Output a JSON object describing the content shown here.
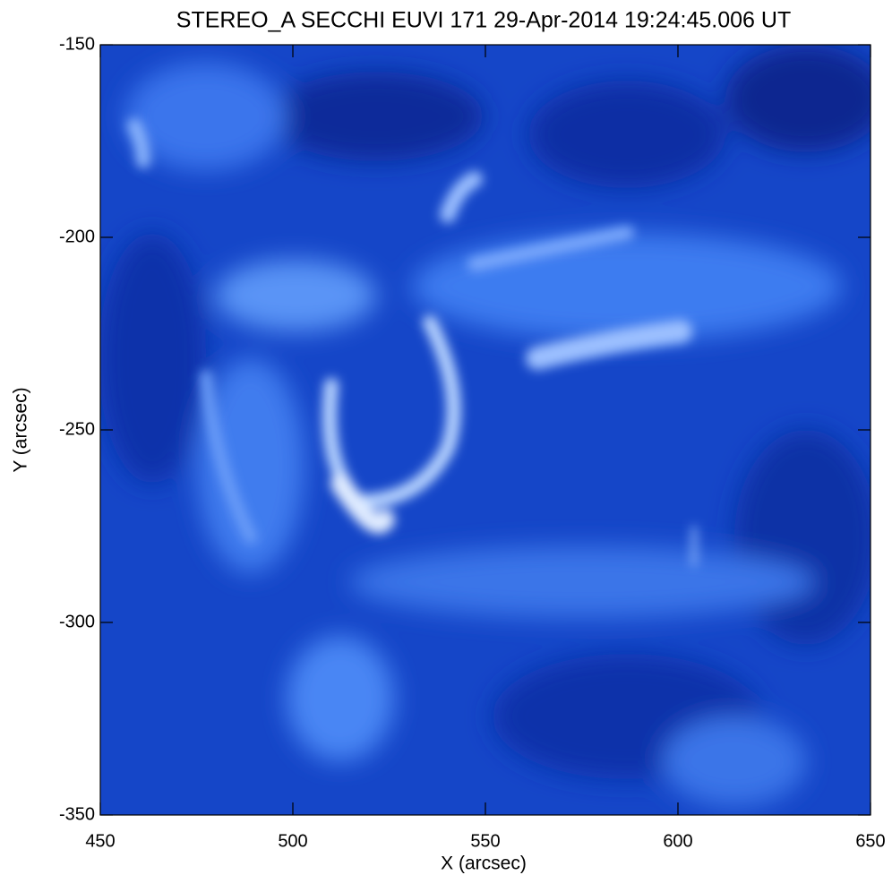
{
  "chart_data": {
    "type": "image",
    "title": "STEREO_A SECCHI EUVI 171 29-Apr-2014 19:24:45.006 UT",
    "x_label": "X (arcsec)",
    "y_label": "Y (arcsec)",
    "xlim": [
      450,
      650
    ],
    "xticks": [
      450,
      500,
      550,
      600,
      650
    ],
    "ylim": [
      -350,
      -150
    ],
    "yticks": [
      -350,
      -300,
      -250,
      -200,
      -150
    ]
  }
}
